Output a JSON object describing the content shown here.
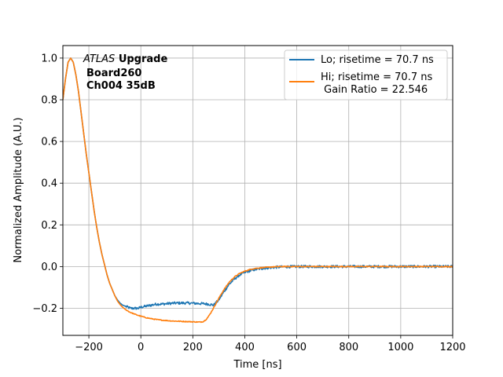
{
  "chart_data": {
    "type": "line",
    "title": "",
    "xlabel": "Time [ns]",
    "ylabel": "Normalized Amplitude (A.U.)",
    "xlim": [
      -300,
      1200
    ],
    "ylim": [
      -0.33,
      1.06
    ],
    "xticks": [
      -200,
      0,
      200,
      400,
      600,
      800,
      1000,
      1200
    ],
    "yticks": [
      -0.2,
      0.0,
      0.2,
      0.4,
      0.6,
      0.8,
      1.0
    ],
    "xtick_labels": [
      "−200",
      "0",
      "200",
      "400",
      "600",
      "800",
      "1000",
      "1200"
    ],
    "ytick_labels": [
      "−0.2",
      "0.0",
      "0.2",
      "0.4",
      "0.6",
      "0.8",
      "1.0"
    ],
    "grid": true,
    "legend_position": "top-right",
    "annotation": {
      "atlas": "ATLAS",
      "upgrade": "Upgrade",
      "board": "Board260",
      "channel": "Ch004 35dB"
    },
    "series": [
      {
        "name": "Lo; risetime = 70.7 ns",
        "color": "#1f77b4",
        "x": [
          -300,
          -290,
          -280,
          -270,
          -260,
          -250,
          -240,
          -230,
          -220,
          -210,
          -200,
          -190,
          -180,
          -170,
          -160,
          -150,
          -140,
          -130,
          -120,
          -110,
          -100,
          -90,
          -80,
          -70,
          -60,
          -50,
          -40,
          -30,
          -20,
          -10,
          0,
          20,
          40,
          60,
          80,
          100,
          120,
          140,
          160,
          180,
          200,
          220,
          240,
          260,
          280,
          300,
          320,
          340,
          360,
          380,
          400,
          420,
          440,
          460,
          480,
          500,
          520,
          540,
          560,
          600,
          650,
          700,
          750,
          800,
          850,
          900,
          950,
          1000,
          1050,
          1100,
          1150,
          1200
        ],
        "y": [
          0.8,
          0.9,
          0.98,
          1.0,
          0.98,
          0.92,
          0.84,
          0.74,
          0.64,
          0.54,
          0.45,
          0.36,
          0.27,
          0.19,
          0.12,
          0.06,
          0.01,
          -0.04,
          -0.08,
          -0.11,
          -0.14,
          -0.16,
          -0.175,
          -0.185,
          -0.19,
          -0.195,
          -0.2,
          -0.2,
          -0.2,
          -0.2,
          -0.195,
          -0.19,
          -0.185,
          -0.18,
          -0.18,
          -0.178,
          -0.176,
          -0.175,
          -0.175,
          -0.175,
          -0.176,
          -0.177,
          -0.178,
          -0.18,
          -0.185,
          -0.16,
          -0.12,
          -0.085,
          -0.06,
          -0.04,
          -0.028,
          -0.02,
          -0.014,
          -0.01,
          -0.007,
          -0.005,
          -0.003,
          -0.002,
          -0.001,
          0.0,
          0.0,
          0.0,
          0.0,
          0.0,
          0.0,
          0.0,
          0.0,
          0.0,
          0.0,
          0.0,
          0.0,
          0.0
        ],
        "noise": 0.006
      },
      {
        "name": "Hi; risetime = 70.7 ns\n Gain Ratio = 22.546",
        "color": "#ff7f0e",
        "x": [
          -300,
          -290,
          -280,
          -270,
          -260,
          -250,
          -240,
          -230,
          -220,
          -210,
          -200,
          -190,
          -180,
          -170,
          -160,
          -150,
          -140,
          -130,
          -120,
          -110,
          -100,
          -90,
          -80,
          -70,
          -60,
          -50,
          -40,
          -30,
          -20,
          -10,
          0,
          20,
          40,
          60,
          80,
          100,
          120,
          140,
          160,
          180,
          200,
          220,
          230,
          240,
          250,
          260,
          270,
          280,
          290,
          300,
          320,
          340,
          360,
          380,
          400,
          420,
          440,
          460,
          480,
          500,
          520,
          540,
          560,
          600,
          650,
          700,
          750,
          800,
          850,
          900,
          950,
          1000,
          1050,
          1100,
          1150,
          1200
        ],
        "y": [
          0.8,
          0.9,
          0.98,
          1.0,
          0.98,
          0.92,
          0.84,
          0.74,
          0.64,
          0.54,
          0.45,
          0.36,
          0.27,
          0.19,
          0.12,
          0.06,
          0.01,
          -0.04,
          -0.08,
          -0.11,
          -0.14,
          -0.165,
          -0.182,
          -0.195,
          -0.205,
          -0.213,
          -0.22,
          -0.225,
          -0.23,
          -0.234,
          -0.238,
          -0.245,
          -0.25,
          -0.254,
          -0.257,
          -0.259,
          -0.261,
          -0.262,
          -0.263,
          -0.264,
          -0.265,
          -0.266,
          -0.266,
          -0.264,
          -0.255,
          -0.24,
          -0.22,
          -0.198,
          -0.175,
          -0.152,
          -0.11,
          -0.075,
          -0.05,
          -0.033,
          -0.022,
          -0.014,
          -0.009,
          -0.006,
          -0.004,
          -0.002,
          -0.001,
          0.0,
          0.0,
          0.0,
          0.0,
          0.0,
          0.0,
          0.0,
          0.0,
          0.0,
          0.0,
          0.0,
          0.0,
          0.0,
          0.0,
          0.0
        ],
        "noise": 0.002
      }
    ]
  }
}
